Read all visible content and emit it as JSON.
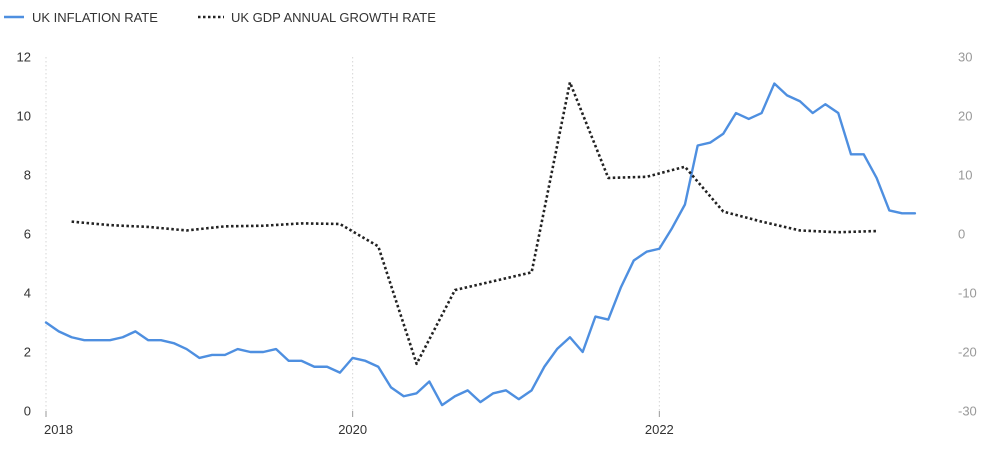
{
  "legend": {
    "items": [
      {
        "label": "UK INFLATION RATE",
        "style": "solid",
        "color": "#4e8fe0"
      },
      {
        "label": "UK GDP ANNUAL GROWTH RATE",
        "style": "dotted",
        "color": "#222222"
      }
    ]
  },
  "colors": {
    "inflation": "#4e8fe0",
    "gdp": "#222222",
    "grid": "#d6d6d6",
    "left_axis_text": "#333333",
    "right_axis_text": "#999999"
  },
  "chart_data": {
    "type": "line",
    "title": "",
    "xlabel": "",
    "ylabel": "",
    "x_ticks": [
      "2018",
      "2020",
      "2022"
    ],
    "x_range": [
      2018.0,
      2023.85
    ],
    "y_left": {
      "range": [
        0,
        12
      ],
      "ticks": [
        "0",
        "2",
        "4",
        "6",
        "8",
        "10",
        "12"
      ]
    },
    "y_right": {
      "range": [
        -30,
        30
      ],
      "ticks": [
        "-30",
        "-20",
        "-10",
        "0",
        "10",
        "20",
        "30"
      ]
    },
    "grid": {
      "vertical": true,
      "horizontal": false,
      "style": "dotted"
    },
    "legend_position": "top-left",
    "series": [
      {
        "name": "UK INFLATION RATE",
        "axis": "left",
        "style": "solid",
        "points": [
          [
            2018.0,
            3.0
          ],
          [
            2018.083,
            2.7
          ],
          [
            2018.167,
            2.5
          ],
          [
            2018.25,
            2.4
          ],
          [
            2018.333,
            2.4
          ],
          [
            2018.417,
            2.4
          ],
          [
            2018.5,
            2.5
          ],
          [
            2018.583,
            2.7
          ],
          [
            2018.667,
            2.4
          ],
          [
            2018.75,
            2.4
          ],
          [
            2018.833,
            2.3
          ],
          [
            2018.917,
            2.1
          ],
          [
            2019.0,
            1.8
          ],
          [
            2019.083,
            1.9
          ],
          [
            2019.167,
            1.9
          ],
          [
            2019.25,
            2.1
          ],
          [
            2019.333,
            2.0
          ],
          [
            2019.417,
            2.0
          ],
          [
            2019.5,
            2.1
          ],
          [
            2019.583,
            1.7
          ],
          [
            2019.667,
            1.7
          ],
          [
            2019.75,
            1.5
          ],
          [
            2019.833,
            1.5
          ],
          [
            2019.917,
            1.3
          ],
          [
            2020.0,
            1.8
          ],
          [
            2020.083,
            1.7
          ],
          [
            2020.167,
            1.5
          ],
          [
            2020.25,
            0.8
          ],
          [
            2020.333,
            0.5
          ],
          [
            2020.417,
            0.6
          ],
          [
            2020.5,
            1.0
          ],
          [
            2020.583,
            0.2
          ],
          [
            2020.667,
            0.5
          ],
          [
            2020.75,
            0.7
          ],
          [
            2020.833,
            0.3
          ],
          [
            2020.917,
            0.6
          ],
          [
            2021.0,
            0.7
          ],
          [
            2021.083,
            0.4
          ],
          [
            2021.167,
            0.7
          ],
          [
            2021.25,
            1.5
          ],
          [
            2021.333,
            2.1
          ],
          [
            2021.417,
            2.5
          ],
          [
            2021.5,
            2.0
          ],
          [
            2021.583,
            3.2
          ],
          [
            2021.667,
            3.1
          ],
          [
            2021.75,
            4.2
          ],
          [
            2021.833,
            5.1
          ],
          [
            2021.917,
            5.4
          ],
          [
            2022.0,
            5.5
          ],
          [
            2022.083,
            6.2
          ],
          [
            2022.167,
            7.0
          ],
          [
            2022.25,
            9.0
          ],
          [
            2022.333,
            9.1
          ],
          [
            2022.417,
            9.4
          ],
          [
            2022.5,
            10.1
          ],
          [
            2022.583,
            9.9
          ],
          [
            2022.667,
            10.1
          ],
          [
            2022.75,
            11.1
          ],
          [
            2022.833,
            10.7
          ],
          [
            2022.917,
            10.5
          ],
          [
            2023.0,
            10.1
          ],
          [
            2023.083,
            10.4
          ],
          [
            2023.167,
            10.1
          ],
          [
            2023.25,
            8.7
          ],
          [
            2023.333,
            8.7
          ],
          [
            2023.417,
            7.9
          ],
          [
            2023.5,
            6.8
          ],
          [
            2023.583,
            6.7
          ],
          [
            2023.667,
            6.7
          ]
        ]
      },
      {
        "name": "UK GDP ANNUAL GROWTH RATE",
        "axis": "right",
        "style": "dotted",
        "points": [
          [
            2018.167,
            2.1
          ],
          [
            2018.417,
            1.5
          ],
          [
            2018.667,
            1.2
          ],
          [
            2018.917,
            0.6
          ],
          [
            2019.167,
            1.3
          ],
          [
            2019.417,
            1.4
          ],
          [
            2019.667,
            1.8
          ],
          [
            2019.917,
            1.7
          ],
          [
            2020.167,
            -2.1
          ],
          [
            2020.417,
            -22.0
          ],
          [
            2020.667,
            -9.5
          ],
          [
            2020.917,
            -8.0
          ],
          [
            2021.167,
            -6.5
          ],
          [
            2021.417,
            25.7
          ],
          [
            2021.667,
            9.5
          ],
          [
            2021.917,
            9.7
          ],
          [
            2022.167,
            11.4
          ],
          [
            2022.417,
            3.8
          ],
          [
            2022.667,
            2.1
          ],
          [
            2022.917,
            0.6
          ],
          [
            2023.167,
            0.3
          ],
          [
            2023.417,
            0.5
          ]
        ]
      }
    ]
  }
}
